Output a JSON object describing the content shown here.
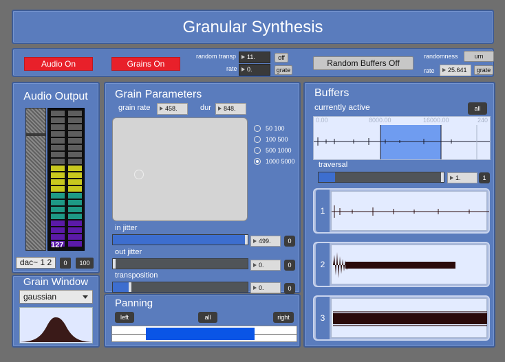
{
  "header": {
    "title": "Granular Synthesis"
  },
  "topbar": {
    "audio_button": "Audio On",
    "grains_button": "Grains On",
    "random_transp_label": "random transp",
    "random_transp_value": "11.",
    "random_transp_toggle": "off",
    "rate_label": "rate",
    "rate_value": "0.",
    "rate_grate": "grate",
    "random_buffers_button": "Random Buffers Off",
    "randomness_label": "randomness",
    "randomness_button": "urn",
    "rate2_label": "rate",
    "rate2_value": "25.641",
    "rate2_grate": "grate"
  },
  "audio_output": {
    "title": "Audio Output",
    "meter_value": "127",
    "dac_label": "dac~ 1 2",
    "btn_zero": "0",
    "btn_hundred": "100"
  },
  "grain_window": {
    "title": "Grain Window",
    "selected": "gaussian"
  },
  "grain_params": {
    "title": "Grain Parameters",
    "rate_label": "grain rate",
    "rate_value": "458.",
    "dur_label": "dur",
    "dur_value": "848.",
    "radio_options": [
      "50 100",
      "100 500",
      "500 1000",
      "1000 5000"
    ],
    "radio_selected": 3,
    "in_jitter_label": "in jitter",
    "in_jitter_value": "499.",
    "in_jitter_level": 0.998,
    "in_jitter_reset": "0",
    "out_jitter_label": "out jitter",
    "out_jitter_value": "0.",
    "out_jitter_level": 0.0,
    "out_jitter_reset": "0",
    "transposition_label": "transposition",
    "transposition_value": "0.",
    "transposition_level": 0.12,
    "transposition_reset": "0"
  },
  "panning": {
    "title": "Panning",
    "left": "left",
    "all": "all",
    "right": "right"
  },
  "buffers": {
    "title": "Buffers",
    "active_label": "currently active",
    "all_button": "all",
    "ruler": [
      "0.00",
      "8000.00",
      "16000.00",
      "240"
    ],
    "traversal_label": "traversal",
    "traversal_value": "1.",
    "traversal_button": "1",
    "slots": [
      "1",
      "2",
      "3"
    ]
  }
}
